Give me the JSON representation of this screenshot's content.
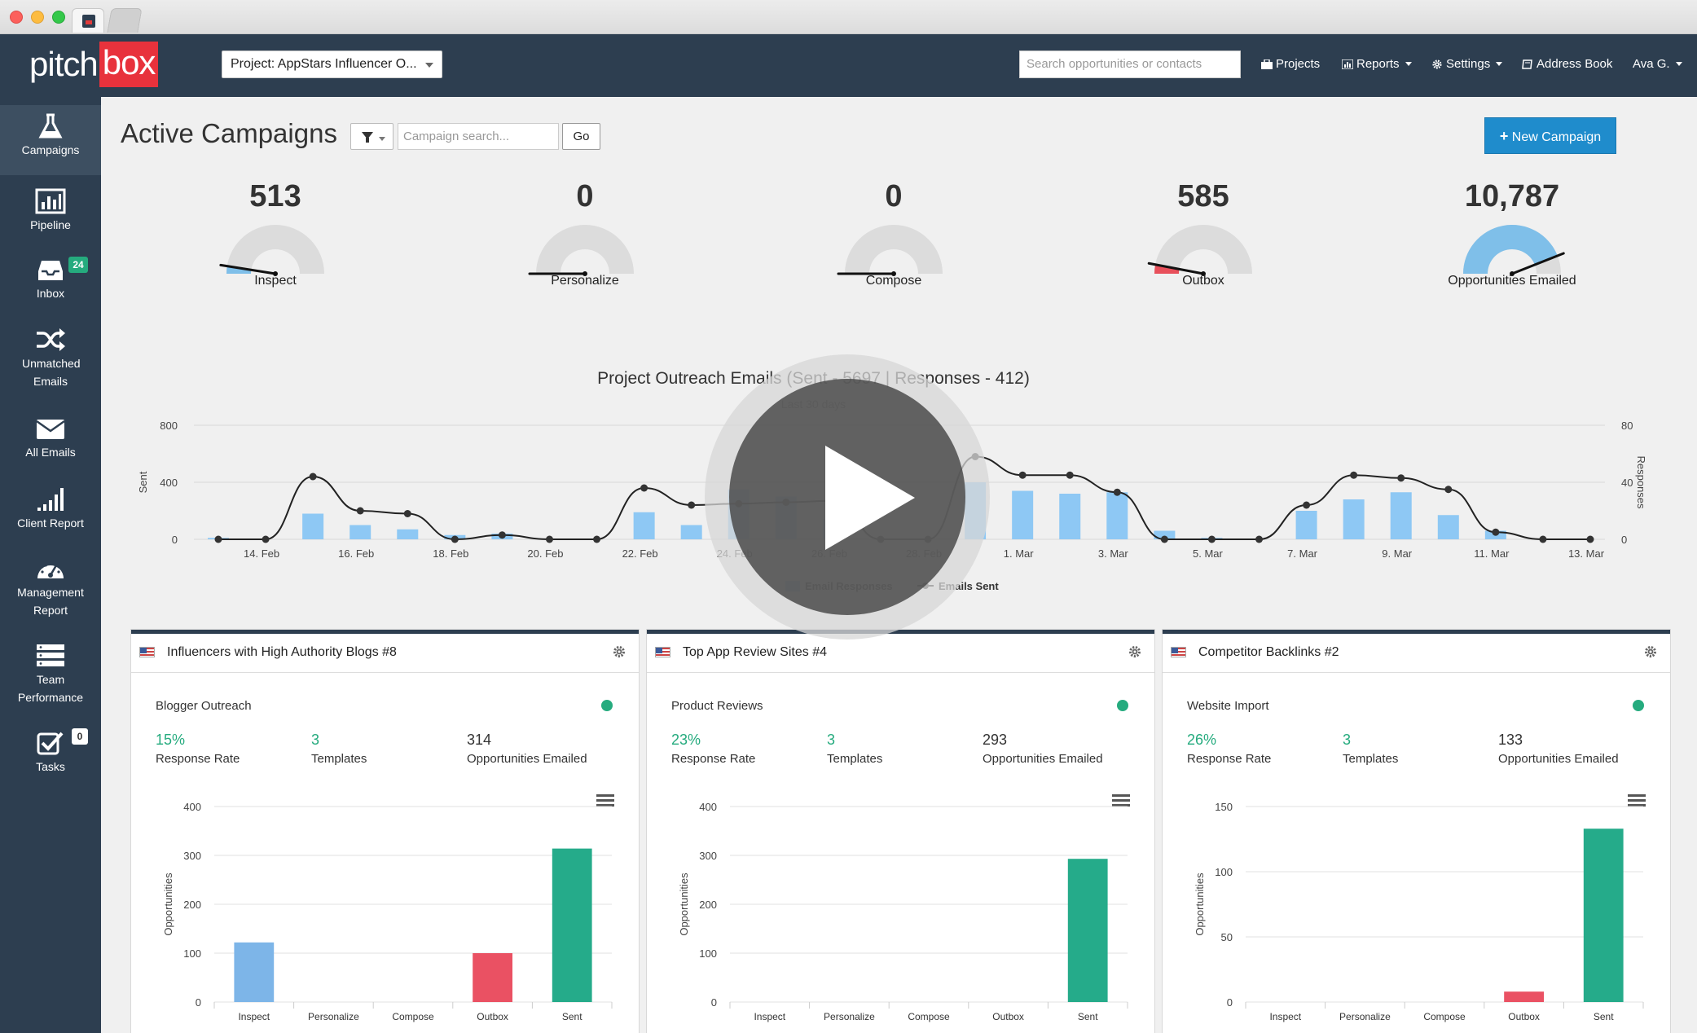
{
  "topbar": {
    "logo_pitch": "pitch",
    "logo_box": "box",
    "project_select": "Project: AppStars Influencer O...",
    "search_placeholder": "Search opportunities or contacts",
    "nav": [
      "Projects",
      "Reports",
      "Settings",
      "Address Book",
      "Ava G."
    ]
  },
  "sidebar": {
    "items": [
      {
        "label": "Campaigns",
        "icon": "flask-icon"
      },
      {
        "label": "Pipeline",
        "icon": "bar-chart-icon"
      },
      {
        "label": "Inbox",
        "icon": "inbox-icon",
        "badge": "24"
      },
      {
        "label": "Unmatched Emails",
        "icon": "shuffle-icon"
      },
      {
        "label": "All Emails",
        "icon": "envelope-icon"
      },
      {
        "label": "Client Report",
        "icon": "signal-icon"
      },
      {
        "label": "Management Report",
        "icon": "dashboard-icon"
      },
      {
        "label": "Team Performance",
        "icon": "server-icon"
      },
      {
        "label": "Tasks",
        "icon": "checkbox-icon",
        "badge": "0"
      }
    ]
  },
  "main": {
    "title": "Active Campaigns",
    "search_placeholder": "Campaign search...",
    "go": "Go",
    "new_campaign": "New Campaign"
  },
  "gauges": [
    {
      "value": "513",
      "label": "Inspect",
      "fraction": 0.05,
      "fill": "#7fbfe9"
    },
    {
      "value": "0",
      "label": "Personalize",
      "fraction": 0.0,
      "fill": "#7fbfe9"
    },
    {
      "value": "0",
      "label": "Compose",
      "fraction": 0.0,
      "fill": "#7fbfe9"
    },
    {
      "value": "585",
      "label": "Outbox",
      "fraction": 0.06,
      "fill": "#e8505b"
    },
    {
      "value": "10,787",
      "label": "Opportunities Emailed",
      "fraction": 0.88,
      "fill": "#7fbfe9"
    }
  ],
  "chart_data": [
    {
      "type": "bar",
      "title": "Project Outreach Emails (Sent - 5697 | Responses - 412)",
      "subtitle": "Last 30 days",
      "ylabel": "Sent",
      "y2label": "Responses",
      "ylim": [
        0,
        800
      ],
      "y2lim": [
        0,
        80
      ],
      "yticks": [
        "0",
        "400",
        "800"
      ],
      "y2ticks": [
        "0",
        "40",
        "80"
      ],
      "xticks": [
        "14. Feb",
        "16. Feb",
        "18. Feb",
        "20. Feb",
        "22. Feb",
        "24. Feb",
        "26. Feb",
        "28. Feb",
        "1. Mar",
        "3. Mar",
        "5. Mar",
        "7. Mar",
        "9. Mar",
        "11. Mar",
        "13. Mar"
      ],
      "legend": [
        "Email Responses",
        "Emails Sent"
      ],
      "responses": [
        1,
        0,
        18,
        10,
        7,
        3,
        4,
        0,
        0,
        19,
        10,
        35,
        30,
        14,
        0,
        0,
        40,
        34,
        32,
        33,
        6,
        1,
        0,
        20,
        28,
        33,
        17,
        6,
        0,
        0
      ],
      "sent": [
        0,
        0,
        440,
        200,
        180,
        0,
        30,
        0,
        0,
        360,
        240,
        250,
        260,
        270,
        0,
        0,
        580,
        450,
        450,
        330,
        0,
        0,
        0,
        240,
        450,
        430,
        350,
        50,
        0,
        0
      ]
    },
    {
      "type": "bar",
      "ylabel": "Opportunities",
      "ylim": [
        0,
        400
      ],
      "yticks": [
        "0",
        "100",
        "200",
        "300",
        "400"
      ],
      "categories": [
        "Inspect",
        "Personalize",
        "Compose",
        "Outbox",
        "Sent"
      ],
      "values": [
        122,
        0,
        0,
        100,
        314
      ],
      "colors": [
        "#7db5e8",
        "#7db5e8",
        "#7db5e8",
        "#ea5163",
        "#25ab8a"
      ]
    },
    {
      "type": "bar",
      "ylabel": "Opportunities",
      "ylim": [
        0,
        400
      ],
      "yticks": [
        "0",
        "100",
        "200",
        "300",
        "400"
      ],
      "categories": [
        "Inspect",
        "Personalize",
        "Compose",
        "Outbox",
        "Sent"
      ],
      "values": [
        0,
        0,
        0,
        0,
        293
      ],
      "colors": [
        "#7db5e8",
        "#7db5e8",
        "#7db5e8",
        "#ea5163",
        "#25ab8a"
      ]
    },
    {
      "type": "bar",
      "ylabel": "Opportunities",
      "ylim": [
        0,
        150
      ],
      "yticks": [
        "0",
        "50",
        "100",
        "150"
      ],
      "categories": [
        "Inspect",
        "Personalize",
        "Compose",
        "Outbox",
        "Sent"
      ],
      "values": [
        0,
        0,
        0,
        8,
        133
      ],
      "colors": [
        "#7db5e8",
        "#7db5e8",
        "#7db5e8",
        "#ea5163",
        "#25ab8a"
      ]
    }
  ],
  "cards": [
    {
      "title": "Influencers with High Authority Blogs #8",
      "subtitle": "Blogger Outreach",
      "response_rate": "15%",
      "response_label": "Response Rate",
      "templates": "3",
      "templates_label": "Templates",
      "emailed": "314",
      "emailed_label": "Opportunities Emailed"
    },
    {
      "title": "Top App Review Sites #4",
      "subtitle": "Product Reviews",
      "response_rate": "23%",
      "response_label": "Response Rate",
      "templates": "3",
      "templates_label": "Templates",
      "emailed": "293",
      "emailed_label": "Opportunities Emailed"
    },
    {
      "title": "Competitor Backlinks #2",
      "subtitle": "Website Import",
      "response_rate": "26%",
      "response_label": "Response Rate",
      "templates": "3",
      "templates_label": "Templates",
      "emailed": "133",
      "emailed_label": "Opportunities Emailed"
    }
  ]
}
